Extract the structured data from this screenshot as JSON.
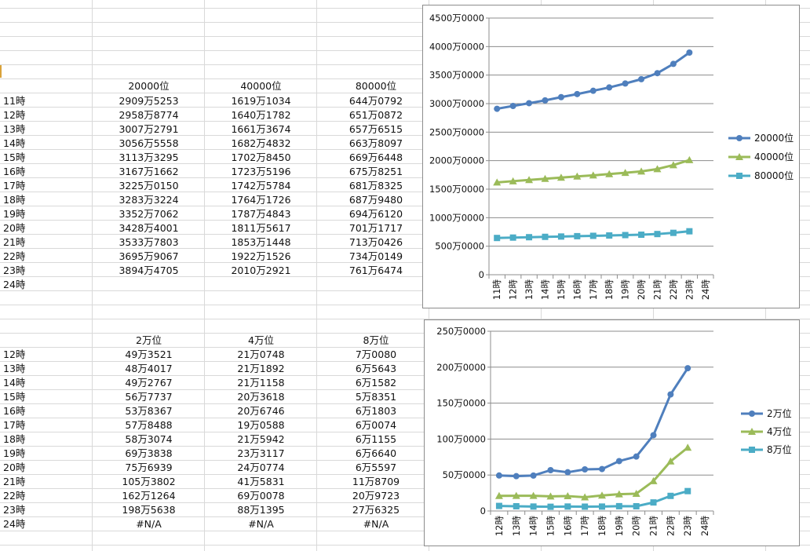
{
  "table1": {
    "headers": [
      "20000位",
      "40000位",
      "80000位"
    ],
    "rows": [
      {
        "label": "11時",
        "values": [
          "2909万5253",
          "1619万1034",
          "644万0792"
        ]
      },
      {
        "label": "12時",
        "values": [
          "2958万8774",
          "1640万1782",
          "651万0872"
        ]
      },
      {
        "label": "13時",
        "values": [
          "3007万2791",
          "1661万3674",
          "657万6515"
        ]
      },
      {
        "label": "14時",
        "values": [
          "3056万5558",
          "1682万4832",
          "663万8097"
        ]
      },
      {
        "label": "15時",
        "values": [
          "3113万3295",
          "1702万8450",
          "669万6448"
        ]
      },
      {
        "label": "16時",
        "values": [
          "3167万1662",
          "1723万5196",
          "675万8251"
        ]
      },
      {
        "label": "17時",
        "values": [
          "3225万0150",
          "1742万5784",
          "681万8325"
        ]
      },
      {
        "label": "18時",
        "values": [
          "3283万3224",
          "1764万1726",
          "687万9480"
        ]
      },
      {
        "label": "19時",
        "values": [
          "3352万7062",
          "1787万4843",
          "694万6120"
        ]
      },
      {
        "label": "20時",
        "values": [
          "3428万4001",
          "1811万5617",
          "701万1717"
        ]
      },
      {
        "label": "21時",
        "values": [
          "3533万7803",
          "1853万1448",
          "713万0426"
        ]
      },
      {
        "label": "22時",
        "values": [
          "3695万9067",
          "1922万1526",
          "734万0149"
        ]
      },
      {
        "label": "23時",
        "values": [
          "3894万4705",
          "2010万2921",
          "761万6474"
        ]
      },
      {
        "label": "24時",
        "values": [
          "",
          "",
          ""
        ]
      }
    ]
  },
  "table2": {
    "headers": [
      "2万位",
      "4万位",
      "8万位"
    ],
    "rows": [
      {
        "label": "12時",
        "values": [
          "49万3521",
          "21万0748",
          "7万0080"
        ]
      },
      {
        "label": "13時",
        "values": [
          "48万4017",
          "21万1892",
          "6万5643"
        ]
      },
      {
        "label": "14時",
        "values": [
          "49万2767",
          "21万1158",
          "6万1582"
        ]
      },
      {
        "label": "15時",
        "values": [
          "56万7737",
          "20万3618",
          "5万8351"
        ]
      },
      {
        "label": "16時",
        "values": [
          "53万8367",
          "20万6746",
          "6万1803"
        ]
      },
      {
        "label": "17時",
        "values": [
          "57万8488",
          "19万0588",
          "6万0074"
        ]
      },
      {
        "label": "18時",
        "values": [
          "58万3074",
          "21万5942",
          "6万1155"
        ]
      },
      {
        "label": "19時",
        "values": [
          "69万3838",
          "23万3117",
          "6万6640"
        ]
      },
      {
        "label": "20時",
        "values": [
          "75万6939",
          "24万0774",
          "6万5597"
        ]
      },
      {
        "label": "21時",
        "values": [
          "105万3802",
          "41万5831",
          "11万8709"
        ]
      },
      {
        "label": "22時",
        "values": [
          "162万1264",
          "69万0078",
          "20万9723"
        ]
      },
      {
        "label": "23時",
        "values": [
          "198万5638",
          "88万1395",
          "27万6325"
        ]
      },
      {
        "label": "24時",
        "values": [
          "#N/A",
          "#N/A",
          "#N/A"
        ]
      }
    ]
  },
  "chart_data": [
    {
      "type": "line",
      "categories": [
        "11時",
        "12時",
        "13時",
        "14時",
        "15時",
        "16時",
        "17時",
        "18時",
        "19時",
        "20時",
        "21時",
        "22時",
        "23時",
        "24時"
      ],
      "y_tick_labels": [
        "0",
        "500万0000",
        "1000万0000",
        "1500万0000",
        "2000万0000",
        "2500万0000",
        "3000万0000",
        "3500万0000",
        "4000万0000",
        "4500万0000"
      ],
      "ylim": [
        0,
        45000000
      ],
      "ytick_step": 5000000,
      "grid": true,
      "legend": "right",
      "series": [
        {
          "name": "20000位",
          "color": "#4f7fbd",
          "marker": "circle",
          "values": [
            29095253,
            29588774,
            30072791,
            30565558,
            31133295,
            31671662,
            32250150,
            32833224,
            33527062,
            34284001,
            35337803,
            36959067,
            38944705,
            null
          ]
        },
        {
          "name": "40000位",
          "color": "#9bbb59",
          "marker": "triangle",
          "values": [
            16191034,
            16401782,
            16613674,
            16824832,
            17028450,
            17235196,
            17425784,
            17641726,
            17874843,
            18115617,
            18531448,
            19221526,
            20102921,
            null
          ]
        },
        {
          "name": "80000位",
          "color": "#4bacc6",
          "marker": "square",
          "values": [
            6440792,
            6510872,
            6576515,
            6638097,
            6696448,
            6758251,
            6818325,
            6879480,
            6946120,
            7011717,
            7130426,
            7340149,
            7616474,
            null
          ]
        }
      ]
    },
    {
      "type": "line",
      "categories": [
        "12時",
        "13時",
        "14時",
        "15時",
        "16時",
        "17時",
        "18時",
        "19時",
        "20時",
        "21時",
        "22時",
        "23時",
        "24時"
      ],
      "y_tick_labels": [
        "0",
        "50万0000",
        "100万0000",
        "150万0000",
        "200万0000",
        "250万0000"
      ],
      "ylim": [
        0,
        2500000
      ],
      "ytick_step": 500000,
      "grid": true,
      "legend": "right",
      "series": [
        {
          "name": "2万位",
          "color": "#4f7fbd",
          "marker": "circle",
          "values": [
            493521,
            484017,
            492767,
            567737,
            538367,
            578488,
            583074,
            693838,
            756939,
            1053802,
            1621264,
            1985638,
            null
          ]
        },
        {
          "name": "4万位",
          "color": "#9bbb59",
          "marker": "triangle",
          "values": [
            210748,
            211892,
            211158,
            203618,
            206746,
            190588,
            215942,
            233117,
            240774,
            415831,
            690078,
            881395,
            null
          ]
        },
        {
          "name": "8万位",
          "color": "#4bacc6",
          "marker": "square",
          "values": [
            70080,
            65643,
            61582,
            58351,
            61803,
            60074,
            61155,
            66640,
            65597,
            118709,
            209723,
            276325,
            null
          ]
        }
      ]
    }
  ]
}
